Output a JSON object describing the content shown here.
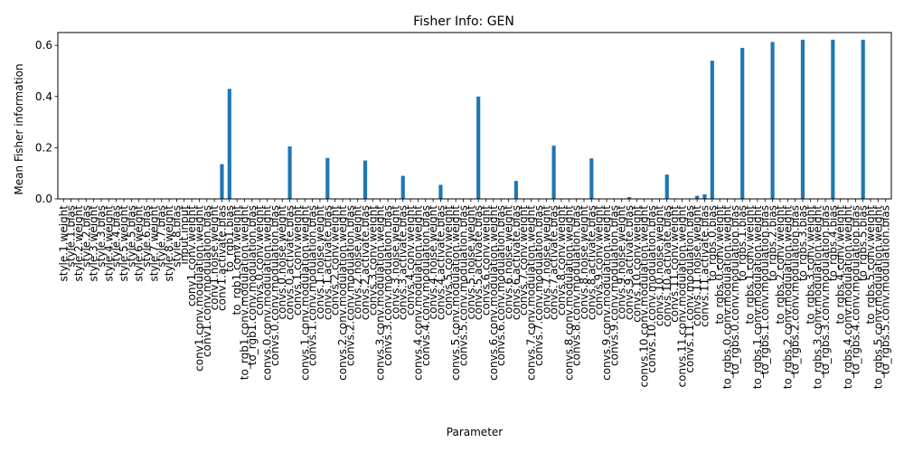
{
  "chart_data": {
    "type": "bar",
    "title": "Fisher Info: GEN",
    "xlabel": "Parameter",
    "ylabel": "Mean Fisher information",
    "ylim": [
      0,
      0.65
    ],
    "yticks": [
      "0.0",
      "0.2",
      "0.4",
      "0.6"
    ],
    "bar_color": "#1f77b4",
    "legend": "none",
    "grid": false,
    "categories": [
      "style.1.weight",
      "style.1.bias",
      "style.2.weight",
      "style.2.bias",
      "style.3.weight",
      "style.3.bias",
      "style.4.weight",
      "style.4.bias",
      "style.5.weight",
      "style.5.bias",
      "style.6.weight",
      "style.6.bias",
      "style.7.weight",
      "style.7.bias",
      "style.8.weight",
      "style.8.bias",
      "input.input",
      "conv1.conv.weight",
      "conv1.conv.modulation.weight",
      "conv1.conv.modulation.bias",
      "conv1.noise.weight",
      "conv1.activate.bias",
      "to_rgb1.bias",
      "to_rgb1.conv.weight",
      "to_rgb1.conv.modulation.weight",
      "to_rgb1.conv.modulation.bias",
      "convs.0.conv.weight",
      "convs.0.conv.modulation.weight",
      "convs.0.conv.modulation.bias",
      "convs.0.noise.weight",
      "convs.0.activate.bias",
      "convs.1.conv.weight",
      "convs.1.conv.modulation.weight",
      "convs.1.conv.modulation.bias",
      "convs.1.noise.weight",
      "convs.1.activate.bias",
      "convs.2.conv.weight",
      "convs.2.conv.modulation.weight",
      "convs.2.conv.modulation.bias",
      "convs.2.noise.weight",
      "convs.2.activate.bias",
      "convs.3.conv.weight",
      "convs.3.conv.modulation.weight",
      "convs.3.conv.modulation.bias",
      "convs.3.noise.weight",
      "convs.3.activate.bias",
      "convs.4.conv.weight",
      "convs.4.conv.modulation.weight",
      "convs.4.conv.modulation.bias",
      "convs.4.noise.weight",
      "convs.4.activate.bias",
      "convs.5.conv.weight",
      "convs.5.conv.modulation.weight",
      "convs.5.conv.modulation.bias",
      "convs.5.noise.weight",
      "convs.5.activate.bias",
      "convs.6.conv.weight",
      "convs.6.conv.modulation.weight",
      "convs.6.conv.modulation.bias",
      "convs.6.noise.weight",
      "convs.6.activate.bias",
      "convs.7.conv.weight",
      "convs.7.conv.modulation.weight",
      "convs.7.conv.modulation.bias",
      "convs.7.noise.weight",
      "convs.7.activate.bias",
      "convs.8.conv.weight",
      "convs.8.conv.modulation.weight",
      "convs.8.conv.modulation.bias",
      "convs.8.noise.weight",
      "convs.8.activate.bias",
      "convs.9.conv.weight",
      "convs.9.conv.modulation.weight",
      "convs.9.conv.modulation.bias",
      "convs.9.noise.weight",
      "convs.9.activate.bias",
      "convs.10.conv.weight",
      "convs.10.conv.modulation.weight",
      "convs.10.conv.modulation.bias",
      "convs.10.noise.weight",
      "convs.10.activate.bias",
      "convs.11.conv.weight",
      "convs.11.conv.modulation.weight",
      "convs.11.conv.modulation.bias",
      "convs.11.noise.weight",
      "convs.11.activate.bias",
      "to_rgbs.0.bias",
      "to_rgbs.0.conv.weight",
      "to_rgbs.0.conv.modulation.weight",
      "to_rgbs.0.conv.modulation.bias",
      "to_rgbs.1.bias",
      "to_rgbs.1.conv.weight",
      "to_rgbs.1.conv.modulation.weight",
      "to_rgbs.1.conv.modulation.bias",
      "to_rgbs.2.bias",
      "to_rgbs.2.conv.weight",
      "to_rgbs.2.conv.modulation.weight",
      "to_rgbs.2.conv.modulation.bias",
      "to_rgbs.3.bias",
      "to_rgbs.3.conv.weight",
      "to_rgbs.3.conv.modulation.weight",
      "to_rgbs.3.conv.modulation.bias",
      "to_rgbs.4.bias",
      "to_rgbs.4.conv.weight",
      "to_rgbs.4.conv.modulation.weight",
      "to_rgbs.4.conv.modulation.bias",
      "to_rgbs.5.bias",
      "to_rgbs.5.conv.weight",
      "to_rgbs.5.conv.modulation.weight",
      "to_rgbs.5.conv.modulation.bias"
    ],
    "values": [
      0,
      0,
      0,
      0,
      0,
      0,
      0,
      0,
      0,
      0,
      0,
      0,
      0,
      0,
      0,
      0,
      0,
      0,
      0,
      0,
      0,
      0.136,
      0.43,
      0,
      0,
      0,
      0,
      0,
      0,
      0,
      0.205,
      0,
      0,
      0,
      0,
      0.16,
      0,
      0,
      0,
      0,
      0.15,
      0,
      0,
      0,
      0,
      0.09,
      0,
      0,
      0,
      0,
      0.055,
      0,
      0,
      0,
      0,
      0.4,
      0,
      0,
      0,
      0,
      0.07,
      0,
      0,
      0,
      0,
      0.208,
      0,
      0,
      0,
      0,
      0.158,
      0,
      0,
      0,
      0,
      0.007,
      0,
      0,
      0,
      0,
      0.095,
      0,
      0,
      0,
      0.012,
      0.018,
      0.54,
      0,
      0,
      0,
      0.59,
      0,
      0,
      0,
      0.613,
      0,
      0,
      0,
      0.622,
      0,
      0,
      0,
      0.622,
      0,
      0,
      0,
      0.622,
      0,
      0,
      0
    ]
  }
}
